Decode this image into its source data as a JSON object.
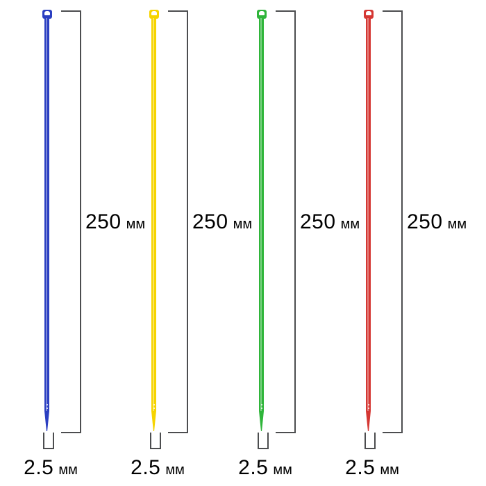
{
  "figure": {
    "background": "#ffffff",
    "line_color": "#4c4d4f",
    "text_color": "#57585a",
    "description_labels": {
      "length": "250 мм",
      "width": "2.5 мм"
    }
  },
  "ties": [
    {
      "name": "blue cable tie",
      "color_hex": "#2b3fc1",
      "length_value": "250",
      "length_unit": "мм",
      "width_value": "2.5",
      "width_unit": "мм"
    },
    {
      "name": "yellow cable tie",
      "color_hex": "#f6d400",
      "length_value": "250",
      "length_unit": "мм",
      "width_value": "2.5",
      "width_unit": "мм"
    },
    {
      "name": "green cable tie",
      "color_hex": "#2fb53a",
      "length_value": "250",
      "length_unit": "мм",
      "width_value": "2.5",
      "width_unit": "мм"
    },
    {
      "name": "red cable tie",
      "color_hex": "#d53733",
      "length_value": "250",
      "length_unit": "мм",
      "width_value": "2.5",
      "width_unit": "мм"
    }
  ]
}
